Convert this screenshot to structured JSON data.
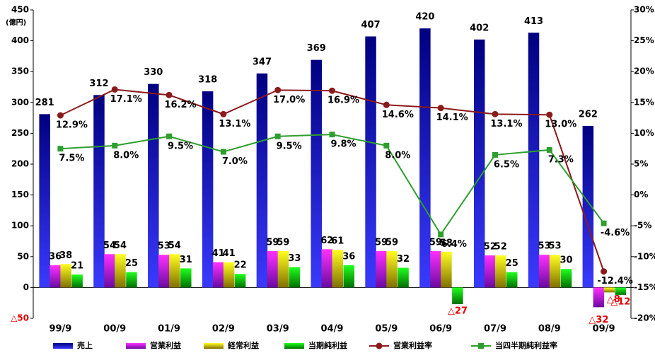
{
  "chart_data": {
    "type": "bar",
    "y_unit": "(億円)",
    "categories": [
      "99/9",
      "00/9",
      "01/9",
      "02/9",
      "03/9",
      "04/9",
      "05/9",
      "06/9",
      "07/9",
      "08/9",
      "09/9"
    ],
    "ylim": [
      -50,
      450
    ],
    "yticks": [
      {
        "value": -50,
        "label": "△50"
      },
      0,
      50,
      100,
      150,
      200,
      250,
      300,
      350,
      400,
      450
    ],
    "y2lim": [
      -20,
      30
    ],
    "y2ticks": [
      {
        "value": -20,
        "label": "-20%"
      },
      {
        "value": -15,
        "label": "-15%"
      },
      {
        "value": -10,
        "label": "-10%"
      },
      {
        "value": -5,
        "label": "-5%"
      },
      {
        "value": 0,
        "label": "0%"
      },
      {
        "value": 5,
        "label": "5%"
      },
      {
        "value": 10,
        "label": "10%"
      },
      {
        "value": 15,
        "label": "15%"
      },
      {
        "value": 20,
        "label": "20%"
      },
      {
        "value": 25,
        "label": "25%"
      },
      {
        "value": 30,
        "label": "30%"
      }
    ],
    "series": [
      {
        "name": "売上",
        "type": "bar",
        "color": "#0a0ad0",
        "values": [
          281,
          312,
          330,
          318,
          347,
          369,
          407,
          420,
          402,
          413,
          262
        ]
      },
      {
        "name": "営業利益",
        "type": "bar",
        "color": "#c020c0",
        "values": [
          36,
          54,
          53,
          41,
          59,
          62,
          59,
          59,
          52,
          53,
          -32
        ],
        "value_labels": [
          "36",
          "54",
          "53",
          "41",
          "59",
          "62",
          "59",
          "59",
          "52",
          "53",
          "△32"
        ]
      },
      {
        "name": "経常利益",
        "type": "bar",
        "color": "#c8c000",
        "values": [
          38,
          54,
          54,
          41,
          59,
          61,
          59,
          58,
          52,
          53,
          -8
        ],
        "value_labels": [
          "38",
          "54",
          "54",
          "41",
          "59",
          "61",
          "59",
          "58",
          "52",
          "53",
          "△8"
        ]
      },
      {
        "name": "当期純利益",
        "type": "bar",
        "color": "#10c010",
        "values": [
          21,
          25,
          31,
          22,
          33,
          36,
          32,
          -27,
          25,
          30,
          -12
        ],
        "value_labels": [
          "21",
          "25",
          "31",
          "22",
          "33",
          "36",
          "32",
          "△27",
          "25",
          "30",
          "△12"
        ]
      },
      {
        "name": "営業利益率",
        "type": "line",
        "axis": "y2",
        "marker": "circle",
        "color": "#8b1a1a",
        "values": [
          12.9,
          17.1,
          16.2,
          13.1,
          17.0,
          16.9,
          14.6,
          14.1,
          13.1,
          13.0,
          -12.4
        ],
        "value_labels": [
          "12.9%",
          "17.1%",
          "16.2%",
          "13.1%",
          "17.0%",
          "16.9%",
          "14.6%",
          "14.1%",
          "13.1%",
          "13.0%",
          "-12.4%"
        ]
      },
      {
        "name": "当四半期純利益率",
        "type": "line",
        "axis": "y2",
        "marker": "square",
        "color": "#2e9e2e",
        "values": [
          7.5,
          8.0,
          9.5,
          7.0,
          9.5,
          9.8,
          8.0,
          -6.4,
          6.5,
          7.3,
          -4.6
        ],
        "value_labels": [
          "7.5%",
          "8.0%",
          "9.5%",
          "7.0%",
          "9.5%",
          "9.8%",
          "8.0%",
          "-6.4%",
          "6.5%",
          "7.3%",
          "-4.6%"
        ]
      }
    ]
  }
}
